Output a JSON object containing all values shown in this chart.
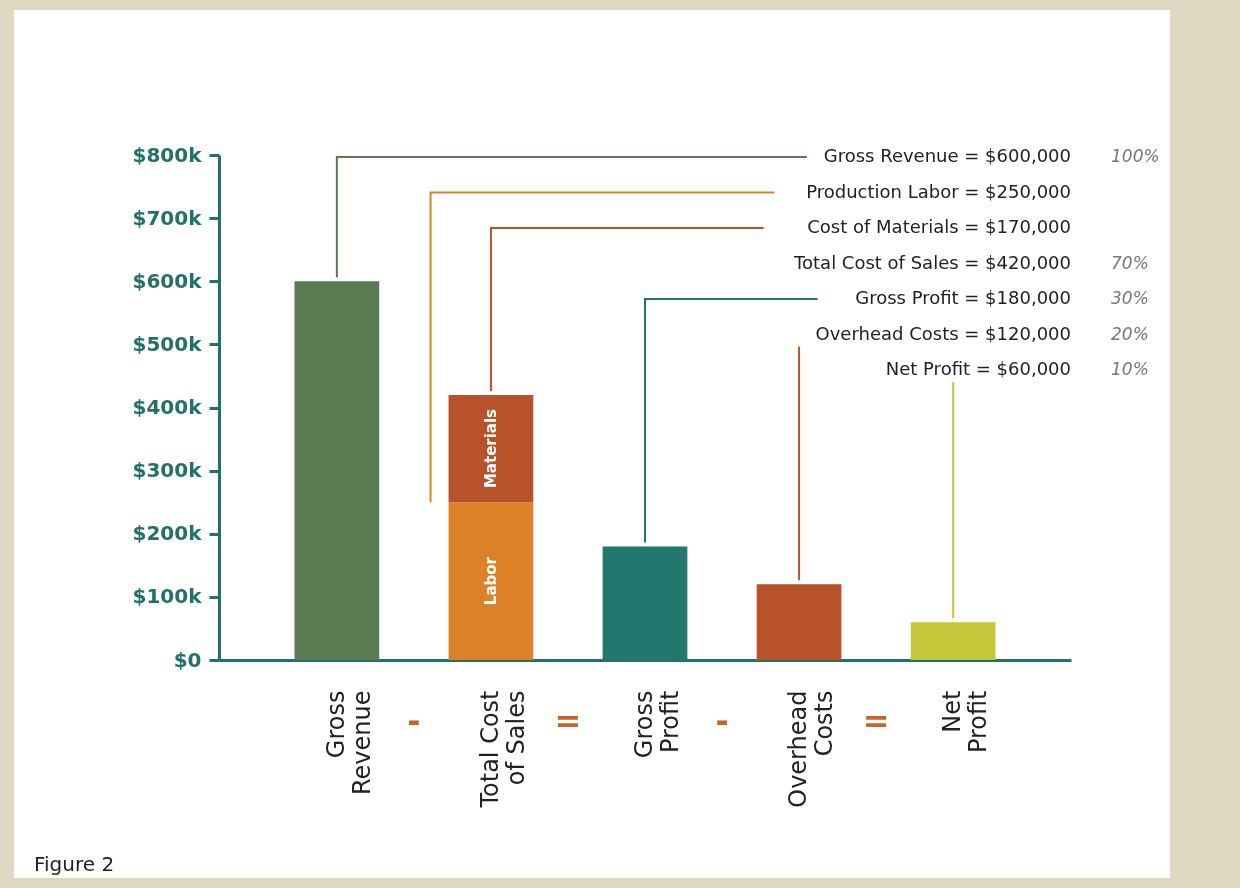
{
  "chart_data": {
    "type": "bar",
    "stacked": true,
    "categories": [
      "Gross Revenue",
      "Total Cost of Sales",
      "Gross Profit",
      "Overhead Costs",
      "Net Profit"
    ],
    "series": [
      {
        "color": "#5b7a52",
        "values": [
          600000,
          null,
          null,
          null,
          null
        ]
      },
      {
        "name": "Labor",
        "color": "#dc8128",
        "values": [
          null,
          250000,
          null,
          null,
          null
        ]
      },
      {
        "name": "Materials",
        "color": "#b7522a",
        "values": [
          null,
          170000,
          null,
          null,
          null
        ]
      },
      {
        "color": "#24776e",
        "values": [
          null,
          null,
          180000,
          null,
          null
        ]
      },
      {
        "color": "#b8522a",
        "values": [
          null,
          null,
          null,
          120000,
          null
        ]
      },
      {
        "color": "#c4c73a",
        "values": [
          null,
          null,
          null,
          null,
          60000
        ]
      }
    ],
    "ylim": [
      0,
      800000
    ],
    "yticks": [
      {
        "value": 0,
        "label": "$0"
      },
      {
        "value": 100000,
        "label": "$100k"
      },
      {
        "value": 200000,
        "label": "$200k"
      },
      {
        "value": 300000,
        "label": "$300k"
      },
      {
        "value": 400000,
        "label": "$400k"
      },
      {
        "value": 500000,
        "label": "$500k"
      },
      {
        "value": 600000,
        "label": "$600k"
      },
      {
        "value": 700000,
        "label": "$700k"
      },
      {
        "value": 800000,
        "label": "$800k"
      }
    ],
    "grid": false,
    "annotations": [
      "-",
      "=",
      "-",
      "=",
      "Figure 2",
      "Gross Revenue = $600,000",
      "100%",
      "Production Labor = $250,000",
      "Cost of Materials = $170,000",
      "Total Cost of Sales = $420,000",
      "70%",
      "Gross Profit = $180,000",
      "30%",
      "Overhead Costs = $120,000",
      "20%",
      "Net Profit = $60,000",
      "10%"
    ]
  }
}
